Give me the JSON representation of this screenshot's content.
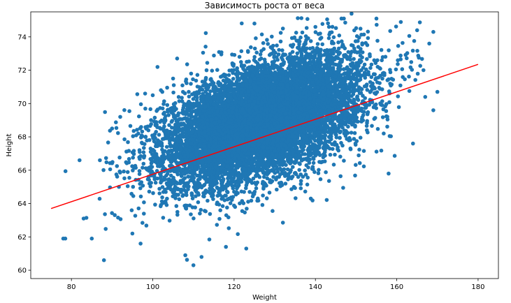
{
  "chart_data": {
    "type": "scatter",
    "title": "Зависимость роста от веса",
    "xlabel": "Weight",
    "ylabel": "Height",
    "xlim": [
      70,
      185
    ],
    "ylim": [
      59.5,
      75.5
    ],
    "xticks": [
      80,
      100,
      120,
      140,
      160,
      180
    ],
    "yticks": [
      60,
      62,
      64,
      66,
      68,
      70,
      72,
      74
    ],
    "grid": false,
    "legend": "none",
    "colors": {
      "points": "#1f77b4",
      "fit_line": "#ff0000"
    },
    "cloud": {
      "n_points": 10000,
      "x_mean": 127,
      "x_std": 12,
      "y_mean": 69,
      "y_std": 1.9,
      "correlation": 0.5
    },
    "outlier_points": [
      [
        78,
        61.9
      ],
      [
        78.5,
        61.9
      ],
      [
        82,
        66.6
      ],
      [
        83,
        63.1
      ],
      [
        85,
        61.9
      ],
      [
        87,
        66.6
      ],
      [
        88,
        60.6
      ],
      [
        90,
        68.5
      ],
      [
        92,
        69.2
      ],
      [
        95,
        62.2
      ],
      [
        97,
        61.6
      ],
      [
        100,
        70.5
      ],
      [
        102,
        70.8
      ],
      [
        105,
        71.5
      ],
      [
        106,
        72.7
      ],
      [
        108,
        60.9
      ],
      [
        110,
        60.3
      ],
      [
        112,
        60.8
      ],
      [
        118,
        61.4
      ],
      [
        123,
        61.3
      ],
      [
        125,
        74.8
      ],
      [
        132,
        74.5
      ],
      [
        140,
        74.6
      ],
      [
        147,
        75.1
      ],
      [
        155,
        75.1
      ],
      [
        165,
        74.4
      ],
      [
        168,
        73.6
      ],
      [
        169,
        74.3
      ],
      [
        170,
        70.7
      ],
      [
        167,
        70.4
      ],
      [
        169,
        69.6
      ],
      [
        164,
        67.6
      ],
      [
        158,
        65.8
      ]
    ],
    "fit_line": {
      "x": [
        75,
        180
      ],
      "y": [
        63.7,
        72.35
      ]
    }
  }
}
